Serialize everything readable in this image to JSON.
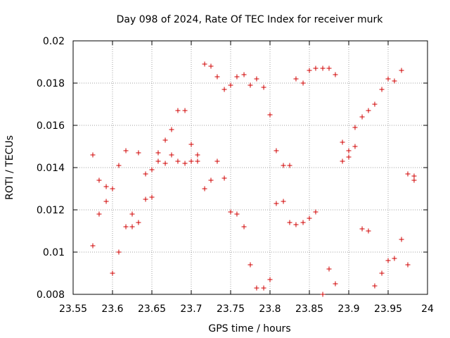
{
  "chart_data": {
    "type": "scatter",
    "title": "Day 098 of 2024, Rate Of TEC Index for receiver murk",
    "xlabel": "GPS time / hours",
    "ylabel": "ROTI / TECUs",
    "xlim": [
      23.55,
      24
    ],
    "ylim": [
      0.008,
      0.02
    ],
    "xticks": [
      23.55,
      23.6,
      23.65,
      23.7,
      23.75,
      23.8,
      23.85,
      23.9,
      23.95,
      24
    ],
    "xtick_labels": [
      "23.55",
      "23.6",
      "23.65",
      "23.7",
      "23.75",
      "23.8",
      "23.85",
      "23.9",
      "23.95",
      "24"
    ],
    "yticks": [
      0.008,
      0.01,
      0.012,
      0.014,
      0.016,
      0.018,
      0.02
    ],
    "ytick_labels": [
      "0.008",
      "0.01",
      "0.012",
      "0.014",
      "0.016",
      "0.018",
      "0.02"
    ],
    "grid": true,
    "marker": "+",
    "color": "#d00000",
    "points": [
      [
        23.575,
        0.0146
      ],
      [
        23.575,
        0.0103
      ],
      [
        23.583,
        0.0134
      ],
      [
        23.583,
        0.0118
      ],
      [
        23.592,
        0.0131
      ],
      [
        23.592,
        0.0124
      ],
      [
        23.6,
        0.013
      ],
      [
        23.6,
        0.009
      ],
      [
        23.608,
        0.0141
      ],
      [
        23.608,
        0.01
      ],
      [
        23.617,
        0.0148
      ],
      [
        23.617,
        0.0112
      ],
      [
        23.625,
        0.0118
      ],
      [
        23.625,
        0.0112
      ],
      [
        23.633,
        0.0147
      ],
      [
        23.633,
        0.0114
      ],
      [
        23.642,
        0.0137
      ],
      [
        23.642,
        0.0125
      ],
      [
        23.65,
        0.0139
      ],
      [
        23.65,
        0.0126
      ],
      [
        23.658,
        0.0147
      ],
      [
        23.658,
        0.0143
      ],
      [
        23.667,
        0.0153
      ],
      [
        23.667,
        0.0142
      ],
      [
        23.675,
        0.0158
      ],
      [
        23.675,
        0.0146
      ],
      [
        23.683,
        0.0167
      ],
      [
        23.683,
        0.0143
      ],
      [
        23.692,
        0.0167
      ],
      [
        23.692,
        0.0142
      ],
      [
        23.7,
        0.0151
      ],
      [
        23.7,
        0.0143
      ],
      [
        23.708,
        0.0146
      ],
      [
        23.708,
        0.0143
      ],
      [
        23.717,
        0.0189
      ],
      [
        23.717,
        0.013
      ],
      [
        23.725,
        0.0188
      ],
      [
        23.725,
        0.0134
      ],
      [
        23.733,
        0.0183
      ],
      [
        23.733,
        0.0143
      ],
      [
        23.742,
        0.0177
      ],
      [
        23.742,
        0.0135
      ],
      [
        23.75,
        0.0179
      ],
      [
        23.75,
        0.0119
      ],
      [
        23.758,
        0.0183
      ],
      [
        23.758,
        0.0118
      ],
      [
        23.767,
        0.0184
      ],
      [
        23.767,
        0.0112
      ],
      [
        23.775,
        0.0179
      ],
      [
        23.775,
        0.0094
      ],
      [
        23.783,
        0.0182
      ],
      [
        23.783,
        0.0083
      ],
      [
        23.792,
        0.0178
      ],
      [
        23.792,
        0.0083
      ],
      [
        23.8,
        0.0165
      ],
      [
        23.8,
        0.0087
      ],
      [
        23.808,
        0.0148
      ],
      [
        23.808,
        0.0123
      ],
      [
        23.817,
        0.0141
      ],
      [
        23.817,
        0.0124
      ],
      [
        23.825,
        0.0141
      ],
      [
        23.825,
        0.0114
      ],
      [
        23.833,
        0.0182
      ],
      [
        23.833,
        0.0113
      ],
      [
        23.842,
        0.018
      ],
      [
        23.842,
        0.0114
      ],
      [
        23.85,
        0.0186
      ],
      [
        23.85,
        0.0116
      ],
      [
        23.858,
        0.0187
      ],
      [
        23.858,
        0.0119
      ],
      [
        23.867,
        0.0187
      ],
      [
        23.867,
        0.008
      ],
      [
        23.875,
        0.0187
      ],
      [
        23.875,
        0.0092
      ],
      [
        23.883,
        0.0184
      ],
      [
        23.883,
        0.0085
      ],
      [
        23.892,
        0.0152
      ],
      [
        23.892,
        0.0143
      ],
      [
        23.9,
        0.0148
      ],
      [
        23.9,
        0.0145
      ],
      [
        23.908,
        0.0159
      ],
      [
        23.908,
        0.015
      ],
      [
        23.917,
        0.0164
      ],
      [
        23.917,
        0.0111
      ],
      [
        23.925,
        0.0167
      ],
      [
        23.925,
        0.011
      ],
      [
        23.933,
        0.017
      ],
      [
        23.933,
        0.0084
      ],
      [
        23.942,
        0.0177
      ],
      [
        23.942,
        0.009
      ],
      [
        23.95,
        0.0182
      ],
      [
        23.95,
        0.0096
      ],
      [
        23.958,
        0.0181
      ],
      [
        23.958,
        0.0097
      ],
      [
        23.967,
        0.0186
      ],
      [
        23.967,
        0.0106
      ],
      [
        23.975,
        0.0137
      ],
      [
        23.975,
        0.0094
      ],
      [
        23.983,
        0.0136
      ],
      [
        23.983,
        0.0134
      ]
    ]
  }
}
